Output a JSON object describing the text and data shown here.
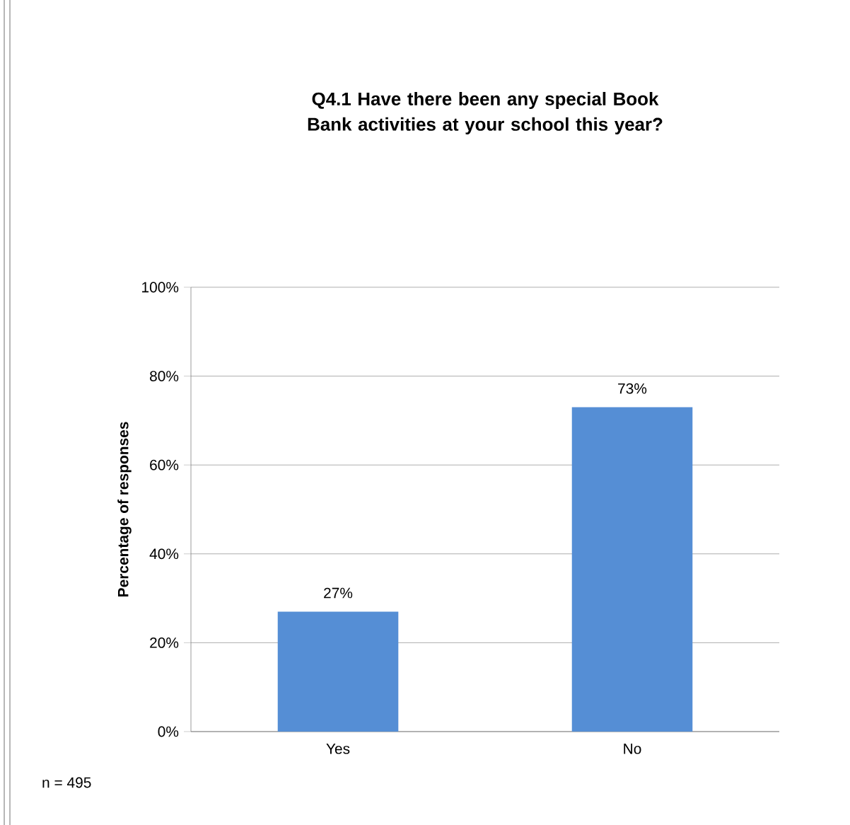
{
  "chart_data": {
    "type": "bar",
    "title": "Q4.1 Have there been any special Book Bank activities at your school this year?",
    "ylabel": "Percentage of responses",
    "categories": [
      "Yes",
      "No"
    ],
    "values": [
      27,
      73
    ],
    "color": "#558ed5",
    "value_labels": [
      "27%",
      "73%"
    ],
    "ylim": [
      0,
      100
    ],
    "yticks": [
      {
        "value": 0,
        "label": "0%"
      },
      {
        "value": 20,
        "label": "20%"
      },
      {
        "value": 40,
        "label": "40%"
      },
      {
        "value": 60,
        "label": "60%"
      },
      {
        "value": 80,
        "label": "80%"
      },
      {
        "value": 100,
        "label": "100%"
      }
    ],
    "grid": "y",
    "annotations": [
      "n = 495"
    ]
  }
}
